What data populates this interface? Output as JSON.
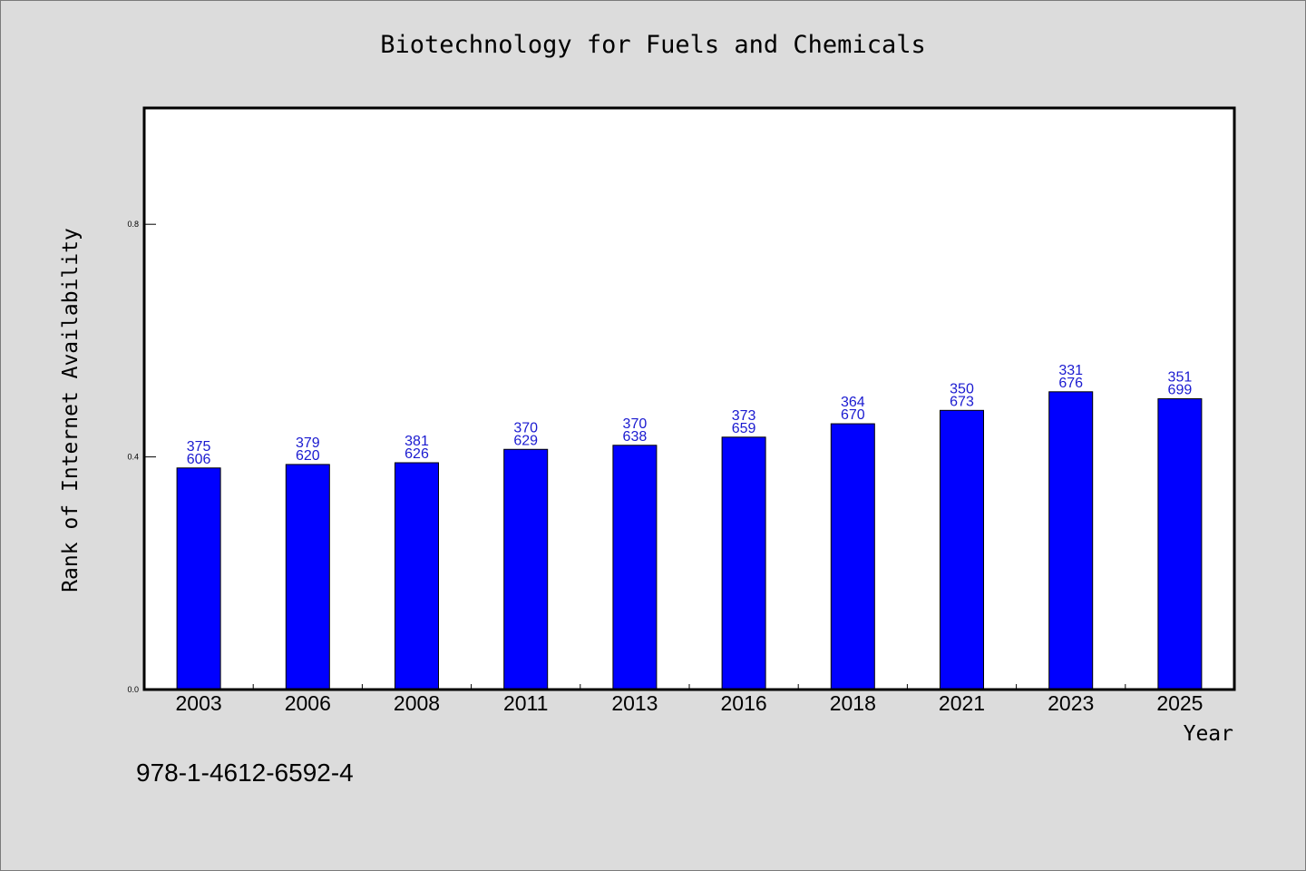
{
  "chart_data": {
    "type": "bar",
    "title": "Biotechnology for Fuels and Chemicals",
    "xlabel": "Year",
    "ylabel": "Rank of Internet Availability",
    "categories": [
      "2003",
      "2006",
      "2008",
      "2011",
      "2013",
      "2016",
      "2018",
      "2021",
      "2023",
      "2025"
    ],
    "values": [
      0.381,
      0.387,
      0.39,
      0.413,
      0.42,
      0.434,
      0.457,
      0.48,
      0.512,
      0.5
    ],
    "data_labels": [
      [
        "375",
        "606"
      ],
      [
        "379",
        "620"
      ],
      [
        "381",
        "626"
      ],
      [
        "370",
        "629"
      ],
      [
        "370",
        "638"
      ],
      [
        "373",
        "659"
      ],
      [
        "364",
        "670"
      ],
      [
        "350",
        "673"
      ],
      [
        "331",
        "676"
      ],
      [
        "351",
        "699"
      ]
    ],
    "y_ticks": [
      "0.0",
      "0.4",
      "0.8"
    ],
    "y_tick_values": [
      0.0,
      0.4,
      0.8
    ],
    "ylim": [
      0,
      1.0
    ],
    "grid": false,
    "legend": "none",
    "bar_color": "#0000ff",
    "label_color": "#1a1ad0"
  },
  "footer": {
    "isbn": "978-1-4612-6592-4"
  },
  "colors": {
    "background": "#dcdcdc",
    "plot_background": "#ffffff"
  }
}
